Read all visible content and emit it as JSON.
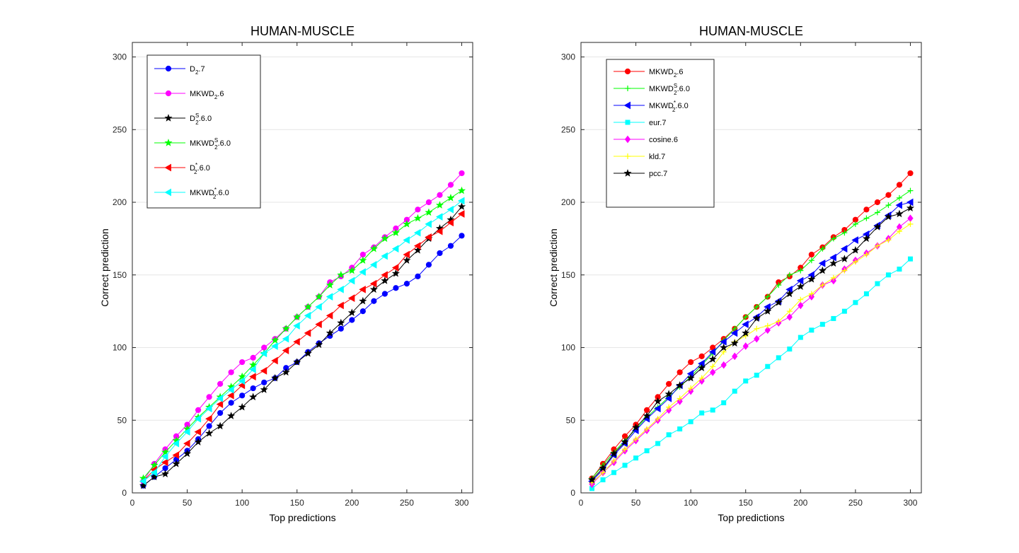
{
  "chart_data": [
    {
      "type": "line",
      "title": "HUMAN-MUSCLE",
      "xlabel": "Top predictions",
      "ylabel": "Correct prediction",
      "xlim": [
        0,
        310
      ],
      "ylim": [
        0,
        310
      ],
      "xticks": [
        0,
        50,
        100,
        150,
        200,
        250,
        300
      ],
      "yticks": [
        0,
        50,
        100,
        150,
        200,
        250,
        300
      ],
      "grid": "y",
      "legend_position": "top-left",
      "x": [
        10,
        20,
        30,
        40,
        50,
        60,
        70,
        80,
        90,
        100,
        110,
        120,
        130,
        140,
        150,
        160,
        170,
        180,
        190,
        200,
        210,
        220,
        230,
        240,
        250,
        260,
        270,
        280,
        290,
        300
      ],
      "series": [
        {
          "name": "D2.7",
          "label_base": "D",
          "label_sub": "2",
          "label_sup": "",
          "label_rest": ".7",
          "color": "#0000ff",
          "marker": "circle",
          "values": [
            5,
            11,
            17,
            23,
            29,
            37,
            46,
            55,
            62,
            67,
            72,
            76,
            79,
            86,
            90,
            97,
            103,
            108,
            113,
            119,
            125,
            132,
            137,
            141,
            144,
            149,
            157,
            165,
            170,
            177
          ]
        },
        {
          "name": "MKWD2.6",
          "label_base": "MKWD",
          "label_sub": "2",
          "label_sup": "",
          "label_rest": ".6",
          "color": "#ff00ff",
          "marker": "circle",
          "values": [
            8,
            20,
            30,
            39,
            47,
            57,
            66,
            75,
            83,
            90,
            93,
            100,
            106,
            113,
            121,
            128,
            135,
            145,
            149,
            155,
            164,
            169,
            176,
            182,
            188,
            195,
            200,
            205,
            212,
            220
          ]
        },
        {
          "name": "D2S.6.0",
          "label_base": "D",
          "label_sub": "2",
          "label_sup": "S",
          "label_rest": ".6.0",
          "color": "#000000",
          "marker": "star",
          "values": [
            5,
            11,
            13,
            20,
            27,
            35,
            41,
            46,
            53,
            59,
            66,
            71,
            79,
            83,
            90,
            96,
            102,
            110,
            117,
            124,
            132,
            140,
            146,
            151,
            160,
            167,
            175,
            182,
            188,
            197
          ]
        },
        {
          "name": "MKWD2S.6.0",
          "label_base": "MKWD",
          "label_sub": "2",
          "label_sup": "S",
          "label_rest": ".6.0",
          "color": "#00ff00",
          "marker": "star",
          "values": [
            10,
            19,
            28,
            36,
            44,
            52,
            59,
            66,
            73,
            80,
            88,
            96,
            105,
            113,
            121,
            128,
            135,
            143,
            150,
            153,
            160,
            168,
            175,
            179,
            185,
            189,
            193,
            198,
            203,
            208
          ]
        },
        {
          "name": "D2*.6.0",
          "label_base": "D",
          "label_sub": "2",
          "label_sup": "*",
          "label_rest": ".6.0",
          "color": "#ff0000",
          "marker": "triangle-left",
          "values": [
            8,
            16,
            21,
            26,
            34,
            42,
            51,
            61,
            67,
            74,
            80,
            84,
            91,
            98,
            104,
            110,
            116,
            122,
            129,
            134,
            140,
            144,
            150,
            155,
            164,
            170,
            176,
            180,
            186,
            192
          ]
        },
        {
          "name": "MKWD2*.6.0",
          "label_base": "MKWD",
          "label_sub": "2",
          "label_sup": "*",
          "label_rest": ".6.0",
          "color": "#00ffff",
          "marker": "triangle-left",
          "values": [
            8,
            14,
            25,
            34,
            42,
            51,
            58,
            65,
            71,
            77,
            85,
            96,
            101,
            106,
            115,
            122,
            128,
            135,
            140,
            146,
            152,
            157,
            163,
            168,
            174,
            179,
            185,
            190,
            195,
            201
          ]
        }
      ]
    },
    {
      "type": "line",
      "title": "HUMAN-MUSCLE",
      "xlabel": "Top predictions",
      "ylabel": "Correct prediction",
      "xlim": [
        0,
        310
      ],
      "ylim": [
        0,
        310
      ],
      "xticks": [
        0,
        50,
        100,
        150,
        200,
        250,
        300
      ],
      "yticks": [
        0,
        50,
        100,
        150,
        200,
        250,
        300
      ],
      "grid": "y",
      "legend_position": "top-left",
      "x": [
        10,
        20,
        30,
        40,
        50,
        60,
        70,
        80,
        90,
        100,
        110,
        120,
        130,
        140,
        150,
        160,
        170,
        180,
        190,
        200,
        210,
        220,
        230,
        240,
        250,
        260,
        270,
        280,
        290,
        300
      ],
      "series": [
        {
          "name": "MKWD2.6",
          "label_base": "MKWD",
          "label_sub": "2",
          "label_sup": "",
          "label_rest": ".6",
          "color": "#ff0000",
          "marker": "circle",
          "values": [
            10,
            20,
            30,
            39,
            47,
            57,
            66,
            75,
            83,
            90,
            94,
            100,
            106,
            113,
            121,
            128,
            135,
            145,
            149,
            155,
            164,
            169,
            176,
            181,
            188,
            195,
            200,
            205,
            212,
            220
          ]
        },
        {
          "name": "MKWD2S.6.0",
          "label_base": "MKWD",
          "label_sub": "2",
          "label_sup": "S",
          "label_rest": ".6.0",
          "color": "#00ff00",
          "marker": "plus",
          "values": [
            10,
            19,
            28,
            36,
            44,
            52,
            59,
            66,
            73,
            80,
            88,
            96,
            105,
            113,
            121,
            128,
            135,
            143,
            150,
            153,
            160,
            168,
            175,
            179,
            185,
            189,
            193,
            198,
            203,
            208
          ]
        },
        {
          "name": "MKWD2*.6.0",
          "label_base": "MKWD",
          "label_sub": "2",
          "label_sup": "*",
          "label_rest": ".6.0",
          "color": "#0000ff",
          "marker": "triangle-left",
          "values": [
            8,
            16,
            26,
            34,
            43,
            51,
            58,
            65,
            74,
            82,
            89,
            97,
            104,
            110,
            116,
            121,
            128,
            132,
            140,
            146,
            150,
            158,
            162,
            168,
            174,
            178,
            184,
            191,
            198,
            200
          ]
        },
        {
          "name": "eur.7",
          "label_base": "eur.7",
          "label_sub": "",
          "label_sup": "",
          "label_rest": "",
          "color": "#00ffff",
          "marker": "square",
          "values": [
            3,
            9,
            14,
            19,
            24,
            29,
            34,
            40,
            44,
            49,
            55,
            57,
            62,
            70,
            77,
            81,
            87,
            93,
            99,
            107,
            112,
            116,
            120,
            125,
            131,
            137,
            144,
            150,
            154,
            161
          ]
        },
        {
          "name": "cosine.6",
          "label_base": "cosine.6",
          "label_sub": "",
          "label_sup": "",
          "label_rest": "",
          "color": "#ff00ff",
          "marker": "diamond",
          "values": [
            6,
            14,
            21,
            29,
            36,
            43,
            50,
            57,
            63,
            70,
            77,
            83,
            88,
            94,
            101,
            106,
            112,
            117,
            121,
            129,
            135,
            143,
            146,
            154,
            160,
            165,
            170,
            175,
            183,
            189
          ]
        },
        {
          "name": "kld.7",
          "label_base": "kld.7",
          "label_sub": "",
          "label_sup": "",
          "label_rest": "",
          "color": "#ffff00",
          "marker": "plus",
          "values": [
            7,
            14,
            22,
            30,
            37,
            44,
            51,
            59,
            65,
            72,
            79,
            87,
            97,
            104,
            108,
            113,
            115,
            118,
            125,
            133,
            137,
            143,
            148,
            153,
            159,
            164,
            170,
            174,
            180,
            185
          ]
        },
        {
          "name": "pcc.7",
          "label_base": "pcc.7",
          "label_sub": "",
          "label_sup": "",
          "label_rest": "",
          "color": "#000000",
          "marker": "star",
          "values": [
            9,
            17,
            27,
            35,
            45,
            53,
            63,
            68,
            74,
            79,
            86,
            92,
            100,
            103,
            110,
            120,
            125,
            131,
            137,
            142,
            147,
            153,
            158,
            161,
            167,
            175,
            183,
            190,
            192,
            196
          ]
        }
      ]
    }
  ]
}
